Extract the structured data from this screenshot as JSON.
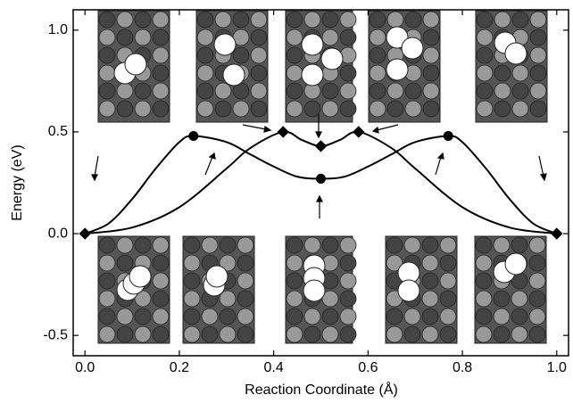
{
  "chart_data": {
    "type": "line",
    "x_label": "Reaction Coordinate (Å)",
    "y_label": "Energy (eV)",
    "xlim": [
      -0.025,
      1.025
    ],
    "ylim": [
      -0.6,
      1.1
    ],
    "xticks": [
      {
        "value": 0,
        "label": "0.0"
      },
      0.2,
      0.4,
      0.6,
      0.8,
      {
        "value": 1,
        "label": "1.0"
      }
    ],
    "yticks": [
      -0.5,
      {
        "value": 0,
        "label": "0.0"
      },
      0.5,
      {
        "value": 1,
        "label": "1.0"
      }
    ],
    "series": [
      {
        "color": "#000000",
        "marker": "none",
        "x": [
          0,
          0.05,
          0.1,
          0.15,
          0.2,
          0.23,
          0.3,
          0.35,
          0.4,
          0.45,
          0.5,
          0.55,
          0.6,
          0.65,
          0.7,
          0.77,
          0.8,
          0.85,
          0.9,
          0.95,
          1
        ],
        "values": [
          0,
          0.05,
          0.17,
          0.32,
          0.45,
          0.48,
          0.45,
          0.39,
          0.33,
          0.28,
          0.27,
          0.28,
          0.33,
          0.39,
          0.45,
          0.48,
          0.45,
          0.32,
          0.17,
          0.05,
          0
        ]
      },
      {
        "color": "#000000",
        "marker": "none",
        "x": [
          0,
          0.1,
          0.2,
          0.3,
          0.35,
          0.42,
          0.46,
          0.5,
          0.54,
          0.58,
          0.65,
          0.7,
          0.8,
          0.9,
          1
        ],
        "values": [
          0,
          0.03,
          0.13,
          0.32,
          0.42,
          0.5,
          0.46,
          0.43,
          0.46,
          0.5,
          0.42,
          0.32,
          0.13,
          0.03,
          0
        ]
      },
      {
        "color": "#000000",
        "marker": "circle",
        "x": [
          0.23,
          0.5,
          0.77
        ],
        "values": [
          0.48,
          0.27,
          0.48
        ]
      },
      {
        "color": "#000000",
        "marker": "diamond",
        "x": [
          0,
          0.42,
          0.5,
          0.58,
          1
        ],
        "values": [
          0,
          0.5,
          0.43,
          0.5,
          0
        ]
      }
    ]
  }
}
